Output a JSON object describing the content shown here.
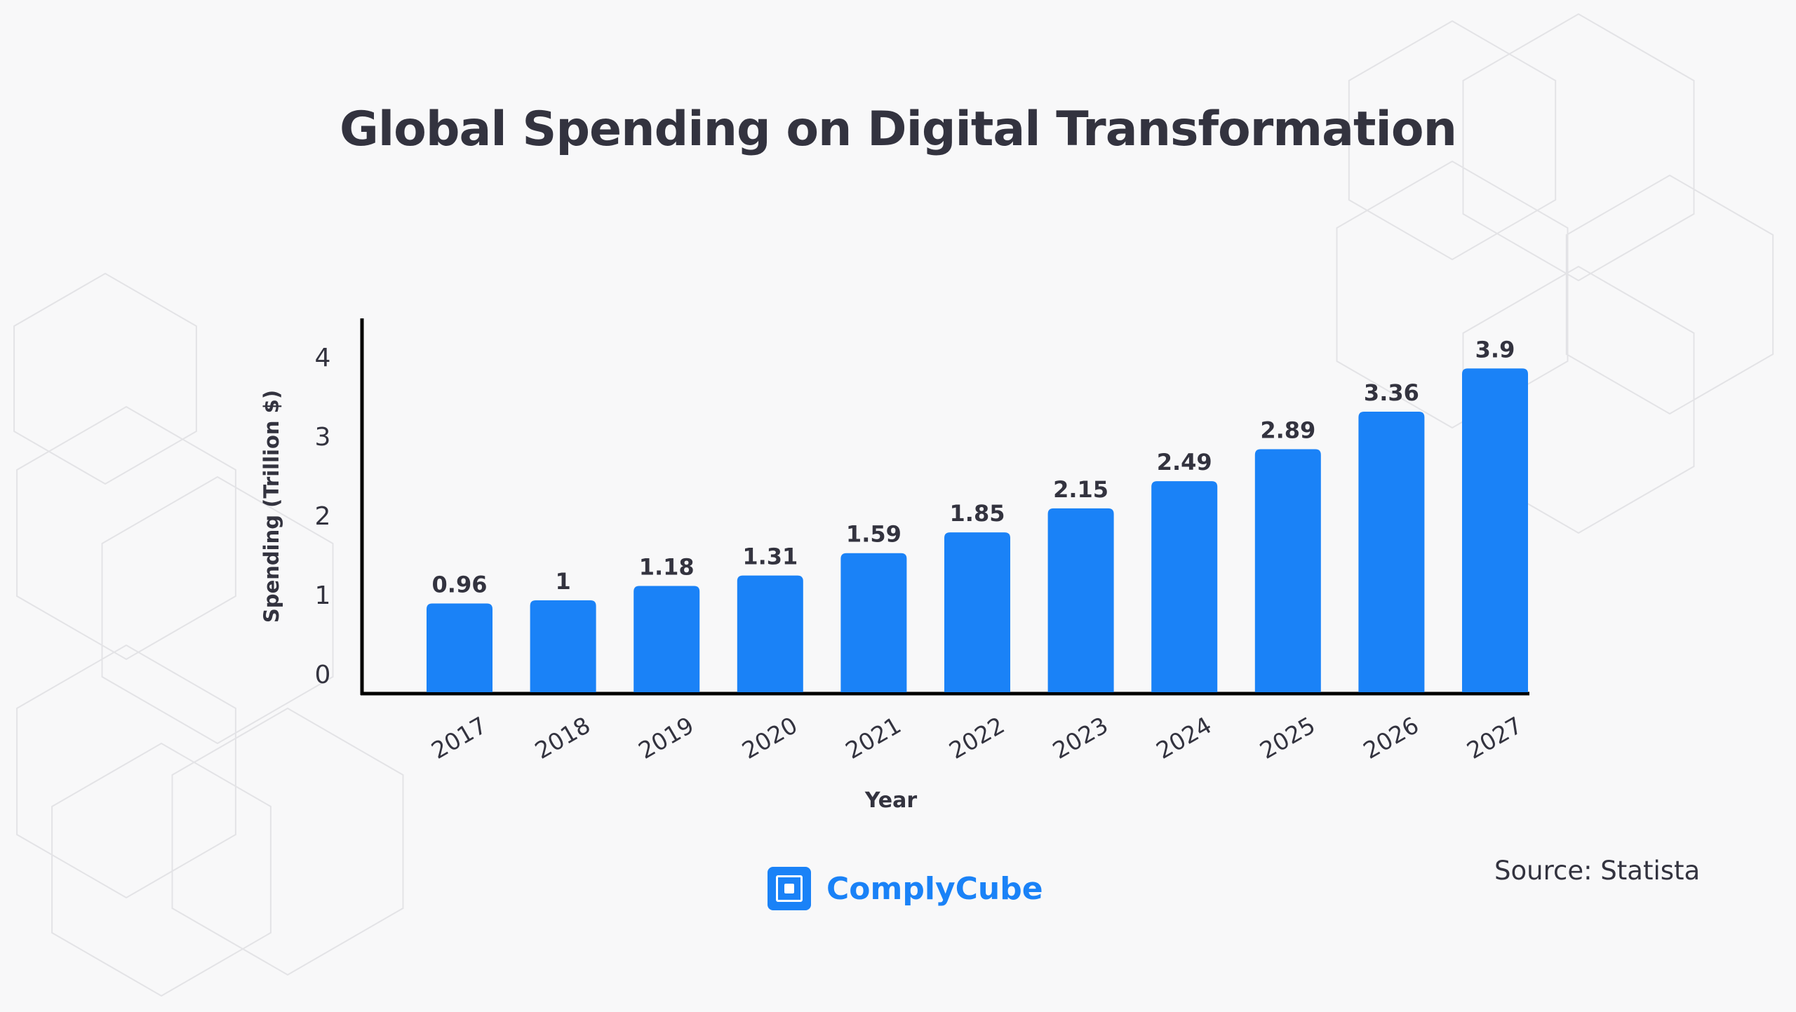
{
  "title": "Global Spending on Digital Transformation",
  "brand": {
    "name": "ComplyCube",
    "color": "#1a82f7"
  },
  "source": "Source: Statista",
  "chart_data": {
    "type": "bar",
    "title": "Global Spending on Digital Transformation",
    "xlabel": "Year",
    "ylabel": "Spending (Trillion $)",
    "categories": [
      "2017",
      "2018",
      "2019",
      "2020",
      "2021",
      "2022",
      "2023",
      "2024",
      "2025",
      "2026",
      "2027"
    ],
    "values": [
      0.96,
      1,
      1.18,
      1.31,
      1.59,
      1.85,
      2.15,
      2.49,
      2.89,
      3.36,
      3.9
    ],
    "data_labels": [
      "0.96",
      "1",
      "1.18",
      "1.31",
      "1.59",
      "1.85",
      "2.15",
      "2.49",
      "2.89",
      "3.36",
      "3.9"
    ],
    "yticks": [
      "0",
      "1",
      "2",
      "3",
      "4"
    ],
    "ylim": [
      0,
      4
    ],
    "grid": false,
    "bar_color": "#1a82f7",
    "xtick_rotation": -30
  }
}
